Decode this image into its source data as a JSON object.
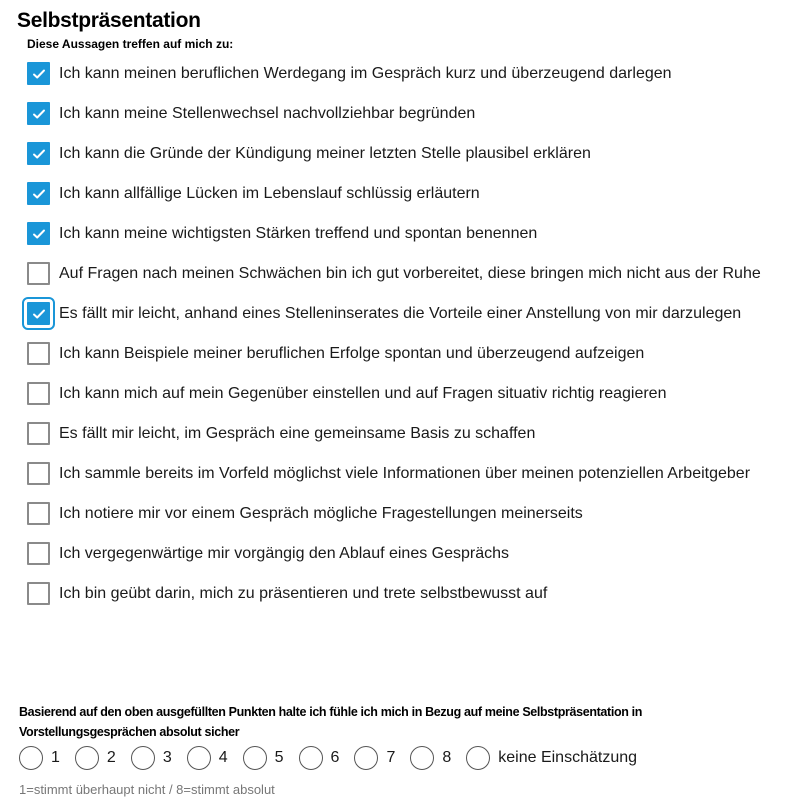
{
  "title": "Selbstpräsentation",
  "subtitle": "Diese Aussagen treffen auf mich zu:",
  "accent_color": "#1a96d8",
  "items": [
    {
      "label": "Ich kann meinen beruflichen Werdegang im Gespräch kurz und überzeugend darlegen",
      "checked": true
    },
    {
      "label": "Ich kann meine Stellenwechsel nachvollziehbar begründen",
      "checked": true
    },
    {
      "label": "Ich kann die Gründe der Kündigung meiner letzten Stelle plausibel erklären",
      "checked": true
    },
    {
      "label": "Ich kann allfällige Lücken im Lebenslauf schlüssig erläutern",
      "checked": true
    },
    {
      "label": "Ich kann meine wichtigsten Stärken treffend und spontan benennen",
      "checked": true
    },
    {
      "label": "Auf Fragen nach meinen Schwächen bin ich gut vorbereitet, diese bringen mich nicht aus der Ruhe",
      "checked": false
    },
    {
      "label": "Es fällt mir leicht, anhand eines Stelleninserates die Vorteile einer Anstellung von mir darzulegen",
      "checked": true,
      "focused": true
    },
    {
      "label": "Ich kann Beispiele meiner beruflichen Erfolge spontan und überzeugend aufzeigen",
      "checked": false
    },
    {
      "label": "Ich kann mich auf mein Gegenüber einstellen und auf Fragen situativ richtig reagieren",
      "checked": false
    },
    {
      "label": "Es fällt mir leicht, im Gespräch eine gemeinsame Basis zu schaffen",
      "checked": false
    },
    {
      "label": "Ich sammle bereits im Vorfeld möglichst viele Informationen über meinen potenziellen Arbeitgeber",
      "checked": false
    },
    {
      "label": "Ich notiere mir vor einem Gespräch mögliche Fragestellungen meinerseits",
      "checked": false
    },
    {
      "label": "Ich vergegenwärtige mir vorgängig den Ablauf eines Gesprächs",
      "checked": false
    },
    {
      "label": "Ich bin geübt darin, mich zu präsentieren und trete selbstbewusst auf",
      "checked": false
    }
  ],
  "question": "Basierend auf den oben ausgefüllten Punkten halte ich fühle ich mich in Bezug auf meine Selbstpräsentation in Vorstellungsgesprächen absolut sicher",
  "rating_options": [
    "1",
    "2",
    "3",
    "4",
    "5",
    "6",
    "7",
    "8",
    "keine Einschätzung"
  ],
  "rating_selected": null,
  "hint": "1=stimmt überhaupt nicht / 8=stimmt absolut"
}
